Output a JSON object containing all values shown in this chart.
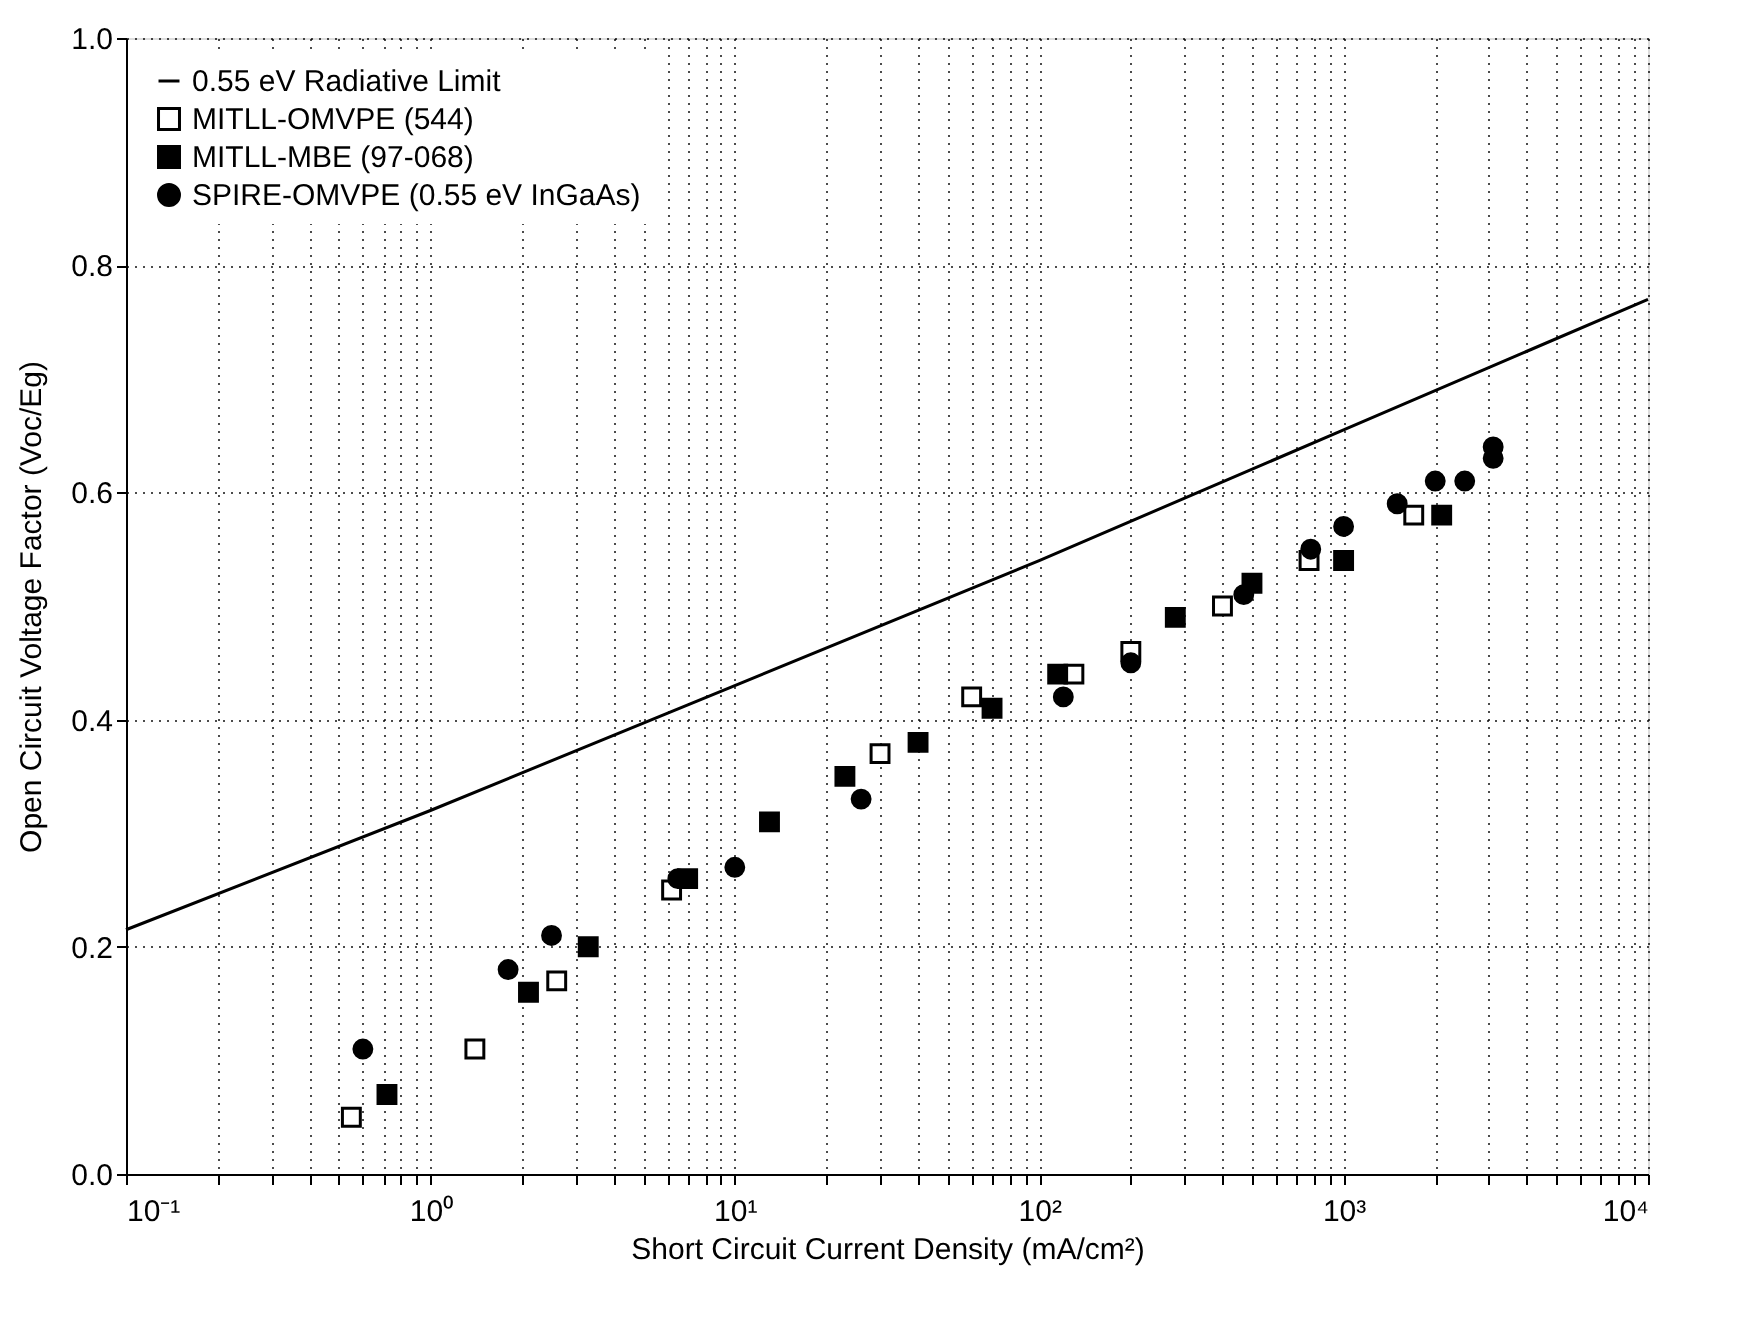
{
  "chart_data": {
    "type": "scatter",
    "xlabel": "Short Circuit Current Density (mA/cm²)",
    "ylabel": "Open Circuit Voltage Factor (Voc/Eg)",
    "log": "x",
    "grid": true,
    "legend": "top left",
    "xlim": [
      0.1,
      10000
    ],
    "ylim": [
      0,
      1
    ],
    "xticks": [
      {
        "value": 0.1,
        "label": "10⁻¹"
      },
      {
        "value": 0.2,
        "label": null
      },
      {
        "value": 0.3,
        "label": null
      },
      {
        "value": 0.4,
        "label": null
      },
      {
        "value": 0.5,
        "label": null
      },
      {
        "value": 0.6,
        "label": null
      },
      {
        "value": 0.7,
        "label": null
      },
      {
        "value": 0.8,
        "label": null
      },
      {
        "value": 0.9,
        "label": null
      },
      {
        "value": 1,
        "label": "10⁰"
      },
      {
        "value": 2,
        "label": null
      },
      {
        "value": 3,
        "label": null
      },
      {
        "value": 4,
        "label": null
      },
      {
        "value": 5,
        "label": null
      },
      {
        "value": 6,
        "label": null
      },
      {
        "value": 7,
        "label": null
      },
      {
        "value": 8,
        "label": null
      },
      {
        "value": 9,
        "label": null
      },
      {
        "value": 10,
        "label": "10¹"
      },
      {
        "value": 20,
        "label": null
      },
      {
        "value": 30,
        "label": null
      },
      {
        "value": 40,
        "label": null
      },
      {
        "value": 50,
        "label": null
      },
      {
        "value": 60,
        "label": null
      },
      {
        "value": 70,
        "label": null
      },
      {
        "value": 80,
        "label": null
      },
      {
        "value": 90,
        "label": null
      },
      {
        "value": 100,
        "label": "10²"
      },
      {
        "value": 200,
        "label": null
      },
      {
        "value": 300,
        "label": null
      },
      {
        "value": 400,
        "label": null
      },
      {
        "value": 500,
        "label": null
      },
      {
        "value": 600,
        "label": null
      },
      {
        "value": 700,
        "label": null
      },
      {
        "value": 800,
        "label": null
      },
      {
        "value": 900,
        "label": null
      },
      {
        "value": 1000,
        "label": "10³"
      },
      {
        "value": 2000,
        "label": null
      },
      {
        "value": 3000,
        "label": null
      },
      {
        "value": 4000,
        "label": null
      },
      {
        "value": 5000,
        "label": null
      },
      {
        "value": 6000,
        "label": null
      },
      {
        "value": 7000,
        "label": null
      },
      {
        "value": 8000,
        "label": null
      },
      {
        "value": 9000,
        "label": null
      },
      {
        "value": 10000,
        "label": "10⁴"
      }
    ],
    "yticks": [
      {
        "value": 0,
        "label": "0.0"
      },
      {
        "value": 0.2,
        "label": "0.2"
      },
      {
        "value": 0.4,
        "label": "0.4"
      },
      {
        "value": 0.6,
        "label": "0.6"
      },
      {
        "value": 0.8,
        "label": "0.8"
      },
      {
        "value": 1,
        "label": "1.0"
      }
    ],
    "series": [
      {
        "name": "0.55 eV Radiative Limit",
        "type": "line",
        "line_style": "solid",
        "marker": "none",
        "color": "#000000",
        "x": [
          0.1,
          1,
          10,
          100,
          1000,
          10000
        ],
        "values": [
          0.215,
          0.32,
          0.43,
          0.54,
          0.655,
          0.77
        ]
      },
      {
        "name": "MITLL-OMVPE (544)",
        "marker": "square",
        "color": "#ffffff",
        "x": [
          0.55,
          1.4,
          2.6,
          6.2,
          30,
          60,
          130,
          200,
          400,
          770,
          1700
        ],
        "values": [
          0.05,
          0.11,
          0.17,
          0.25,
          0.37,
          0.42,
          0.44,
          0.46,
          0.5,
          0.54,
          0.58
        ]
      },
      {
        "name": "MITLL-MBE (97-068)",
        "marker": "square",
        "color": "#000000",
        "x": [
          0.72,
          2.1,
          3.3,
          7,
          13,
          23,
          40,
          70,
          115,
          280,
          500,
          1000,
          2100
        ],
        "values": [
          0.07,
          0.16,
          0.2,
          0.26,
          0.31,
          0.35,
          0.38,
          0.41,
          0.44,
          0.49,
          0.52,
          0.54,
          0.58
        ]
      },
      {
        "name": "SPIRE-OMVPE (0.55 eV InGaAs)",
        "marker": "circle",
        "color": "#000000",
        "x": [
          0.6,
          1.8,
          2.5,
          6.5,
          10,
          26,
          120,
          200,
          470,
          780,
          1000,
          1500,
          2000,
          2500,
          3100,
          3100
        ],
        "values": [
          0.11,
          0.18,
          0.21,
          0.26,
          0.27,
          0.33,
          0.42,
          0.45,
          0.51,
          0.55,
          0.57,
          0.59,
          0.61,
          0.61,
          0.63,
          0.64
        ]
      }
    ]
  }
}
